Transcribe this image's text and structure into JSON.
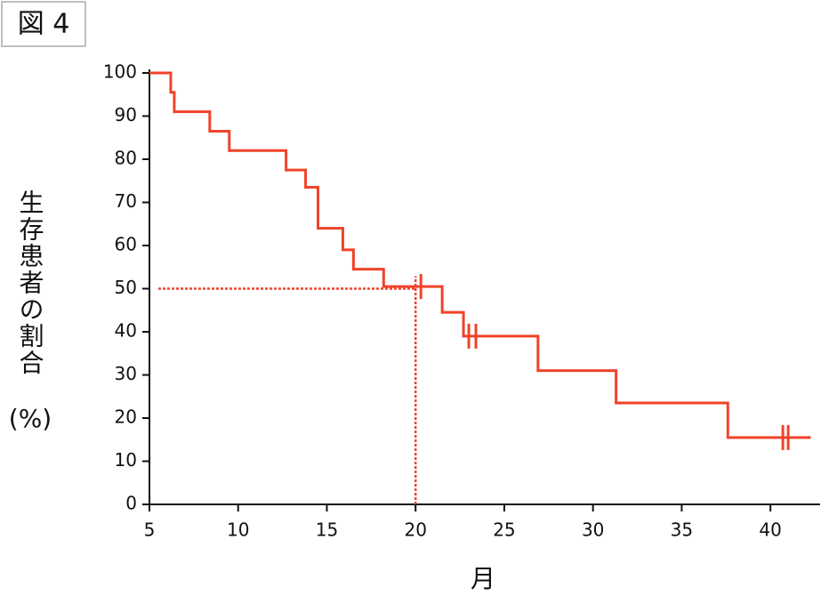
{
  "chart_data": {
    "type": "step",
    "title": "図 4",
    "y_label": "生存患者の割合",
    "y_unit": "(%)",
    "x_label": "月",
    "xlim": [
      5,
      42.8
    ],
    "ylim": [
      0,
      100
    ],
    "xticks": [
      5,
      10,
      15,
      20,
      25,
      30,
      35,
      40
    ],
    "yticks": [
      0,
      10,
      20,
      30,
      40,
      50,
      60,
      70,
      80,
      90,
      100
    ],
    "color": "#f0432a",
    "x": [
      5,
      6.2,
      6.4,
      8.4,
      9.5,
      12.7,
      13.8,
      14.5,
      15.9,
      16.5,
      18.2,
      21.5,
      22.7,
      26.9,
      31.3,
      37.6,
      42.2
    ],
    "values": [
      100,
      95.5,
      91,
      86.5,
      82,
      77.5,
      73.5,
      64,
      59,
      54.5,
      50.5,
      44.5,
      39,
      31,
      23.5,
      15.5,
      15.5
    ],
    "censor_x": [
      20.3,
      23,
      23.4,
      40.7,
      41
    ],
    "censor_values": [
      50.5,
      39,
      39,
      15.5,
      15.5
    ],
    "median": {
      "x": 20,
      "y": 50,
      "x_start": 5.5
    }
  }
}
